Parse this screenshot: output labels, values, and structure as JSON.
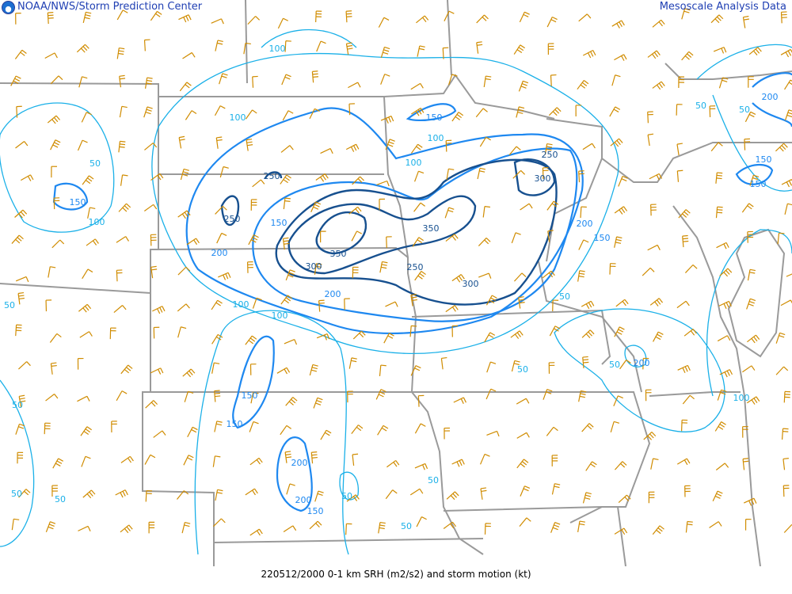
{
  "header": {
    "left_title": "NOAA/NWS/Storm Prediction Center",
    "right_title": "Mesoscale Analysis Data"
  },
  "footer": {
    "caption": "220512/2000 0-1 km SRH (m2/s2) and storm motion (kt)"
  },
  "colors": {
    "contour_low": "#1ab0e8",
    "contour_mid": "#1e88f0",
    "contour_high": "#17508f",
    "barb": "#d08c00",
    "border": "#9a9a9a",
    "header_text": "#1f3fb3"
  },
  "contour_labels": [
    {
      "text": "100",
      "level": "low"
    },
    {
      "text": "100",
      "level": "low"
    },
    {
      "text": "50",
      "level": "low"
    },
    {
      "text": "150",
      "level": "mid"
    },
    {
      "text": "100",
      "level": "low"
    },
    {
      "text": "250",
      "level": "high"
    },
    {
      "text": "250",
      "level": "high"
    },
    {
      "text": "150",
      "level": "mid"
    },
    {
      "text": "200",
      "level": "mid"
    },
    {
      "text": "350",
      "level": "high"
    },
    {
      "text": "300",
      "level": "high"
    },
    {
      "text": "200",
      "level": "mid"
    },
    {
      "text": "100",
      "level": "low"
    },
    {
      "text": "100",
      "level": "low"
    },
    {
      "text": "150",
      "level": "mid"
    },
    {
      "text": "100",
      "level": "low"
    },
    {
      "text": "100",
      "level": "low"
    },
    {
      "text": "350",
      "level": "high"
    },
    {
      "text": "250",
      "level": "high"
    },
    {
      "text": "300",
      "level": "high"
    },
    {
      "text": "250",
      "level": "high"
    },
    {
      "text": "300",
      "level": "high"
    },
    {
      "text": "200",
      "level": "mid"
    },
    {
      "text": "150",
      "level": "mid"
    },
    {
      "text": "50",
      "level": "low"
    },
    {
      "text": "50",
      "level": "low"
    },
    {
      "text": "50",
      "level": "low"
    },
    {
      "text": "50",
      "level": "low"
    },
    {
      "text": "200",
      "level": "mid"
    },
    {
      "text": "150",
      "level": "mid"
    },
    {
      "text": "200",
      "level": "mid"
    },
    {
      "text": "200",
      "level": "mid"
    },
    {
      "text": "150",
      "level": "mid"
    },
    {
      "text": "50",
      "level": "low"
    },
    {
      "text": "50",
      "level": "low"
    },
    {
      "text": "50",
      "level": "low"
    },
    {
      "text": "50",
      "level": "low"
    },
    {
      "text": "50",
      "level": "low"
    },
    {
      "text": "150",
      "level": "mid"
    },
    {
      "text": "150",
      "level": "mid"
    },
    {
      "text": "200",
      "level": "mid"
    },
    {
      "text": "50",
      "level": "low"
    },
    {
      "text": "100",
      "level": "low"
    },
    {
      "text": "150",
      "level": "mid"
    },
    {
      "text": "50",
      "level": "low"
    },
    {
      "text": "50",
      "level": "low"
    }
  ]
}
